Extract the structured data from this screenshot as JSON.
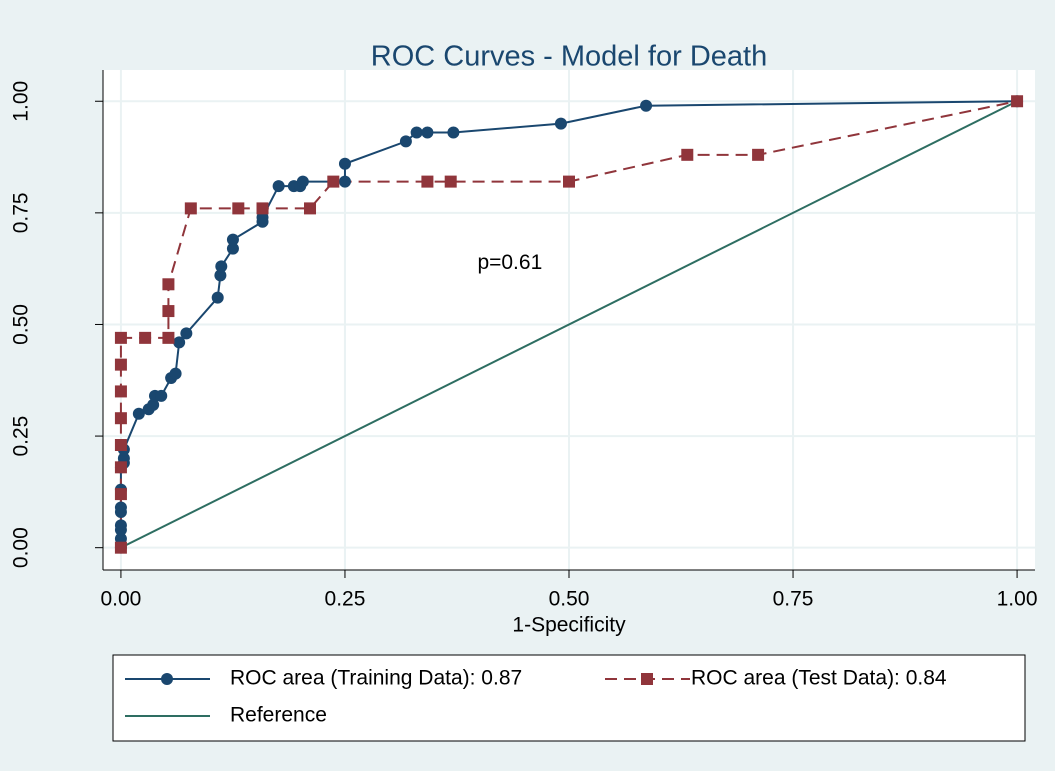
{
  "chart_data": {
    "type": "line",
    "title": "ROC Curves - Model for Death",
    "x_label": "1-Specificity",
    "annotation": "p=0.61",
    "annotation_position": [
      0.434,
      0.637
    ],
    "xlim": [
      -0.02,
      1.02
    ],
    "ylim": [
      -0.05,
      1.07
    ],
    "xticks": [
      {
        "value": 0,
        "label": "0.00"
      },
      {
        "value": 0.25,
        "label": "0.25"
      },
      {
        "value": 0.5,
        "label": "0.50"
      },
      {
        "value": 0.75,
        "label": "0.75"
      },
      {
        "value": 1,
        "label": "1.00"
      }
    ],
    "yticks": [
      {
        "value": 0,
        "label": "0.00"
      },
      {
        "value": 0.25,
        "label": "0.25"
      },
      {
        "value": 0.5,
        "label": "0.50"
      },
      {
        "value": 0.75,
        "label": "0.75"
      },
      {
        "value": 1,
        "label": "1.00"
      }
    ],
    "grid": true,
    "legend_position": "bottom",
    "series": [
      {
        "name": "ROC area (Training Data): 0.87",
        "color": "#1a476f",
        "marker": "circle",
        "dash": "solid",
        "x": [
          0,
          0,
          0,
          0,
          0,
          0,
          0,
          0,
          0.0033,
          0.0033,
          0.0033,
          0.02,
          0.031,
          0.036,
          0.038,
          0.045,
          0.056,
          0.061,
          0.065,
          0.073,
          0.108,
          0.111,
          0.112,
          0.125,
          0.125,
          0.158,
          0.158,
          0.176,
          0.193,
          0.2,
          0.203,
          0.25,
          0.25,
          0.318,
          0.33,
          0.342,
          0.371,
          0.491,
          0.586,
          1
        ],
        "values": [
          0,
          0.02,
          0.04,
          0.05,
          0.08,
          0.09,
          0.13,
          0.18,
          0.19,
          0.2,
          0.22,
          0.3,
          0.31,
          0.32,
          0.34,
          0.34,
          0.38,
          0.39,
          0.46,
          0.48,
          0.56,
          0.61,
          0.63,
          0.67,
          0.69,
          0.73,
          0.74,
          0.81,
          0.81,
          0.81,
          0.82,
          0.82,
          0.86,
          0.91,
          0.93,
          0.93,
          0.93,
          0.95,
          0.99,
          1
        ]
      },
      {
        "name": "ROC area (Test Data): 0.84",
        "color": "#90353b",
        "marker": "square",
        "dash": "dashed",
        "x": [
          0,
          0,
          0,
          0,
          0,
          0,
          0,
          0,
          0.027,
          0.053,
          0.053,
          0.053,
          0.078,
          0.131,
          0.158,
          0.211,
          0.237,
          0.342,
          0.368,
          0.5,
          0.632,
          0.711,
          1
        ],
        "values": [
          0,
          0.12,
          0.18,
          0.23,
          0.29,
          0.35,
          0.41,
          0.47,
          0.47,
          0.47,
          0.53,
          0.59,
          0.76,
          0.76,
          0.76,
          0.76,
          0.82,
          0.82,
          0.82,
          0.82,
          0.88,
          0.88,
          1
        ]
      },
      {
        "name": "Reference",
        "color": "#2e6e62",
        "marker": "none",
        "dash": "solid",
        "x": [
          0,
          1
        ],
        "values": [
          0,
          1
        ]
      }
    ]
  }
}
